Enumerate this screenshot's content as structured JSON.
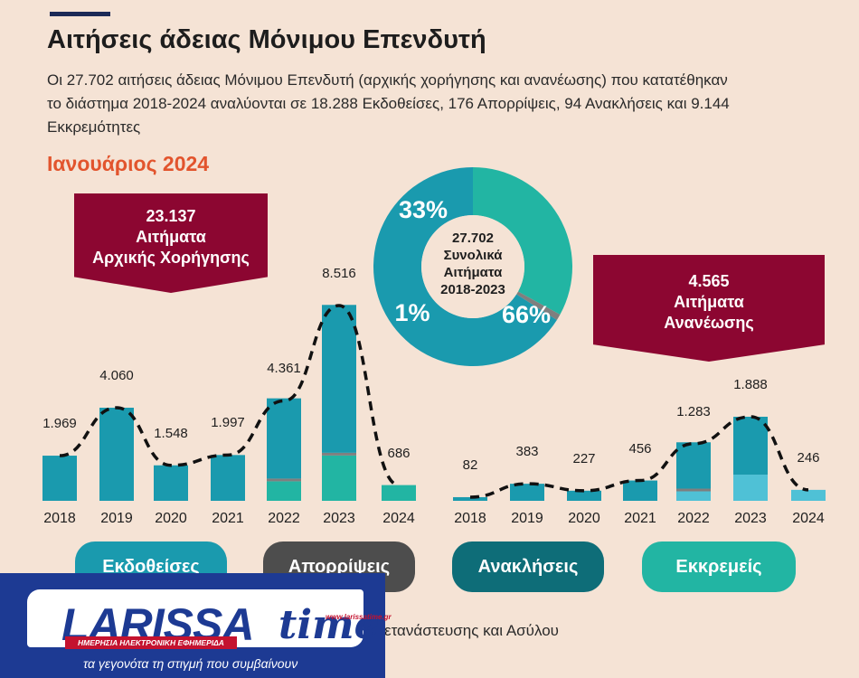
{
  "title": "Αιτήσεις άδειας Μόνιμου Επενδυτή",
  "subtitle": "Οι 27.702 αιτήσεις άδειας Μόνιμου Επενδυτή (αρχικής χορήγησης και ανανέωσης) που κατατέθηκαν το διάστημα 2018-2024 αναλύονται σε 18.288 Εκδοθείσες, 176 Απορρίψεις, 94 Ανακλήσεις και 9.144 Εκκρεμότητες",
  "period": "Ιανουάριος 2024",
  "banner_initial": {
    "value": "23.137",
    "line1": "Αιτήματα",
    "line2": "Αρχικής Χορήγησης"
  },
  "banner_renewal": {
    "value": "4.565",
    "line1": "Αιτήματα",
    "line2": "Ανανέωσης"
  },
  "donut": {
    "center_line1": "27.702",
    "center_line2": "Συνολικά",
    "center_line3": "Αιτήματα",
    "center_line4": "2018-2023",
    "labels": [
      "33%",
      "1%",
      "66%"
    ]
  },
  "legend": {
    "issued": "Εκδοθείσες",
    "rejections": "Απορρίψεις",
    "revocations": "Ανακλήσεις",
    "pending": "Εκκρεμείς"
  },
  "footnote": "ετανάστευσης και Ασύλου",
  "logo": {
    "word": "LARISSA",
    "time": "time",
    "url": "www.larissatime.gr",
    "band": "ΗΜΕΡΗΣΙΑ ΗΛΕΚΤΡΟΝΙΚΗ ΕΦΗΜΕΡΙΔΑ",
    "tagline": "τα γεγονότα τη στιγμή που συμβαίνουν"
  },
  "colors": {
    "issued": "#1a9aae",
    "rejections": "#7f7f7f",
    "revocations": "#0e6d78",
    "pending": "#22b5a3",
    "pending_light": "#4fc1d6",
    "banner": "#8c0631",
    "accent": "#e2542d"
  },
  "chart_data": [
    {
      "type": "bar",
      "title": "Αιτήματα Αρχικής Χορήγησης",
      "categories": [
        "2018",
        "2019",
        "2020",
        "2021",
        "2022",
        "2023",
        "2024"
      ],
      "values": [
        1969,
        4060,
        1548,
        1997,
        4361,
        8516,
        686
      ],
      "labels": [
        "1.969",
        "4.060",
        "1.548",
        "1.997",
        "4.361",
        "8.516",
        "686"
      ],
      "series": [
        {
          "name": "Εκδοθείσες",
          "values": [
            1969,
            4060,
            1548,
            1997,
            3500,
            6450,
            0
          ]
        },
        {
          "name": "Απορρίψεις",
          "values": [
            0,
            0,
            0,
            0,
            10,
            90,
            0
          ]
        },
        {
          "name": "Εκκρεμείς",
          "values": [
            0,
            0,
            0,
            0,
            851,
            1976,
            686
          ]
        }
      ],
      "ylim": [
        0,
        9000
      ]
    },
    {
      "type": "bar",
      "title": "Αιτήματα Ανανέωσης",
      "categories": [
        "2018",
        "2019",
        "2020",
        "2021",
        "2022",
        "2023",
        "2024"
      ],
      "values": [
        82,
        383,
        227,
        456,
        1283,
        1888,
        246
      ],
      "labels": [
        "82",
        "383",
        "227",
        "456",
        "1.283",
        "1.888",
        "246"
      ],
      "series": [
        {
          "name": "Εκδοθείσες",
          "values": [
            82,
            383,
            227,
            456,
            1040,
            1300,
            0
          ]
        },
        {
          "name": "Ανακλήσεις",
          "values": [
            0,
            0,
            0,
            0,
            30,
            0,
            0
          ]
        },
        {
          "name": "Εκκρεμείς",
          "values": [
            0,
            0,
            0,
            0,
            213,
            588,
            246
          ]
        }
      ],
      "ylim": [
        0,
        2000
      ]
    },
    {
      "type": "pie",
      "title": "27.702 Συνολικά Αιτήματα 2018-2023",
      "categories": [
        "Εκκρεμείς",
        "Απορρίψεις/Ανακλήσεις",
        "Εκδοθείσες"
      ],
      "values": [
        33,
        1,
        66
      ]
    }
  ]
}
